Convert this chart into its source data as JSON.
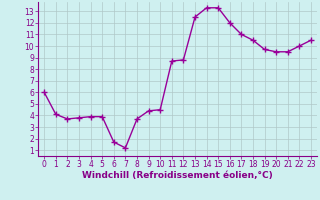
{
  "x": [
    0,
    1,
    2,
    3,
    4,
    5,
    6,
    7,
    8,
    9,
    10,
    11,
    12,
    13,
    14,
    15,
    16,
    17,
    18,
    19,
    20,
    21,
    22,
    23
  ],
  "y": [
    6.0,
    4.1,
    3.7,
    3.8,
    3.9,
    3.9,
    1.7,
    1.2,
    3.7,
    4.4,
    4.5,
    8.7,
    8.8,
    12.5,
    13.3,
    13.3,
    12.0,
    11.0,
    10.5,
    9.7,
    9.5,
    9.5,
    10.0,
    10.5
  ],
  "line_color": "#990099",
  "marker": "+",
  "markersize": 4,
  "linewidth": 1.0,
  "markeredgewidth": 1.0,
  "xlabel": "Windchill (Refroidissement éolien,°C)",
  "xlim": [
    -0.5,
    23.5
  ],
  "ylim": [
    0.5,
    13.8
  ],
  "yticks": [
    1,
    2,
    3,
    4,
    5,
    6,
    7,
    8,
    9,
    10,
    11,
    12,
    13
  ],
  "xticks": [
    0,
    1,
    2,
    3,
    4,
    5,
    6,
    7,
    8,
    9,
    10,
    11,
    12,
    13,
    14,
    15,
    16,
    17,
    18,
    19,
    20,
    21,
    22,
    23
  ],
  "bg_color": "#cff0f0",
  "grid_color": "#b0c8c8",
  "line_border_color": "#770077",
  "tick_color": "#880088",
  "label_color": "#880088",
  "tick_fontsize": 5.5,
  "xlabel_fontsize": 6.5
}
